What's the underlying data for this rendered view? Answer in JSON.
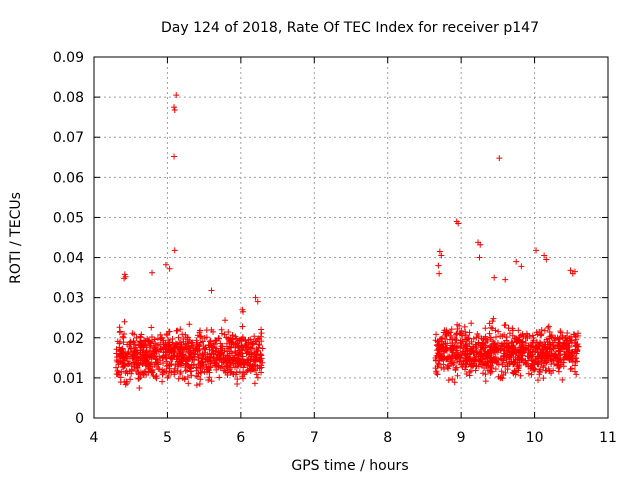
{
  "chart_data": {
    "type": "scatter",
    "title": "Day 124 of 2018, Rate Of TEC Index for receiver p147",
    "xlabel": "GPS time / hours",
    "ylabel": "ROTI / TECUs",
    "xlim": [
      4,
      11
    ],
    "ylim": [
      0,
      0.09
    ],
    "x_ticks": [
      4,
      5,
      6,
      7,
      8,
      9,
      10,
      11
    ],
    "x_tick_labels": [
      "4",
      "5",
      "6",
      "7",
      "8",
      "9",
      "10",
      "11"
    ],
    "y_ticks": [
      0,
      0.01,
      0.02,
      0.03,
      0.04,
      0.05,
      0.06,
      0.07,
      0.08,
      0.09
    ],
    "y_tick_labels": [
      "0",
      "0.01",
      "0.02",
      "0.03",
      "0.04",
      "0.05",
      "0.06",
      "0.07",
      "0.08",
      "0.09"
    ],
    "grid": true,
    "marker": "+",
    "color": "#ff0000",
    "series": [
      {
        "name": "ROTI",
        "points": [
          [
            5.12,
            0.0805
          ],
          [
            5.09,
            0.0775
          ],
          [
            5.1,
            0.0768
          ],
          [
            5.09,
            0.0652
          ],
          [
            9.52,
            0.0648
          ],
          [
            5.1,
            0.0418
          ],
          [
            8.94,
            0.049
          ],
          [
            8.96,
            0.0485
          ],
          [
            4.42,
            0.0358
          ],
          [
            4.43,
            0.0352
          ],
          [
            4.41,
            0.0348
          ],
          [
            4.79,
            0.0362
          ],
          [
            4.98,
            0.0382
          ],
          [
            5.03,
            0.0372
          ],
          [
            5.6,
            0.0318
          ],
          [
            8.71,
            0.0415
          ],
          [
            8.73,
            0.0405
          ],
          [
            8.69,
            0.038
          ],
          [
            8.7,
            0.036
          ],
          [
            9.23,
            0.0438
          ],
          [
            9.26,
            0.0432
          ],
          [
            9.25,
            0.04
          ],
          [
            10.02,
            0.0418
          ],
          [
            10.13,
            0.0405
          ],
          [
            10.16,
            0.0395
          ],
          [
            9.75,
            0.039
          ],
          [
            9.82,
            0.0378
          ],
          [
            10.49,
            0.0368
          ],
          [
            10.52,
            0.036
          ],
          [
            10.55,
            0.0365
          ],
          [
            9.45,
            0.035
          ],
          [
            9.6,
            0.0345
          ],
          [
            6.02,
            0.027
          ],
          [
            6.03,
            0.0265
          ],
          [
            6.2,
            0.03
          ],
          [
            6.23,
            0.029
          ]
        ]
      }
    ],
    "clusters": [
      {
        "x_range": [
          4.3,
          6.3
        ],
        "y_range": [
          0.004,
          0.031
        ],
        "y_center": 0.0155,
        "count": 900
      },
      {
        "x_range": [
          8.65,
          10.6
        ],
        "y_range": [
          0.004,
          0.034
        ],
        "y_center": 0.0165,
        "count": 900
      }
    ]
  }
}
